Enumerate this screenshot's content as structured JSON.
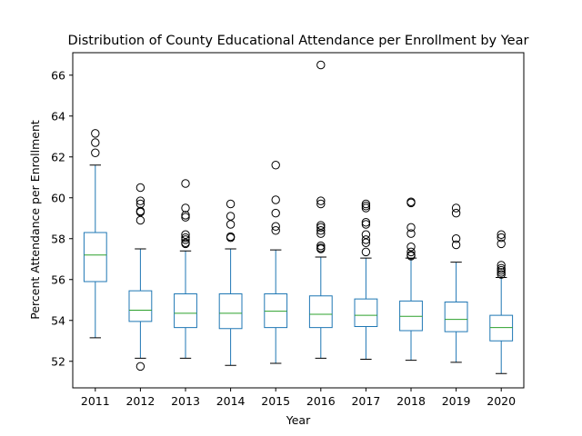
{
  "chart_data": {
    "type": "box",
    "title": "Distribution of County Educational Attendance per Enrollment by Year",
    "xlabel": "Year",
    "ylabel": "Percent Attendance per Enrollment",
    "ylim": [
      50.7,
      67.1
    ],
    "yticks": [
      52,
      54,
      56,
      58,
      60,
      62,
      64,
      66
    ],
    "grid": false,
    "colors": {
      "box": "#1f77b4",
      "median": "#2ca02c",
      "whisker_cap": "#000000",
      "outlier": "#000000"
    },
    "categories": [
      "2011",
      "2012",
      "2013",
      "2014",
      "2015",
      "2016",
      "2017",
      "2018",
      "2019",
      "2020"
    ],
    "boxes": [
      {
        "year": "2011",
        "whislo": 53.15,
        "q1": 55.9,
        "med": 57.2,
        "q3": 58.3,
        "whishi": 61.6,
        "fliers": [
          62.2,
          62.7,
          63.15
        ]
      },
      {
        "year": "2012",
        "whislo": 52.15,
        "q1": 53.95,
        "med": 54.5,
        "q3": 55.45,
        "whishi": 57.5,
        "fliers": [
          51.75,
          58.9,
          59.3,
          59.35,
          59.7,
          59.85,
          60.5
        ]
      },
      {
        "year": "2013",
        "whislo": 52.15,
        "q1": 53.65,
        "med": 54.35,
        "q3": 55.3,
        "whishi": 57.4,
        "fliers": [
          57.75,
          57.8,
          57.95,
          58.05,
          58.2,
          59.05,
          59.15,
          59.5,
          60.7
        ]
      },
      {
        "year": "2014",
        "whislo": 51.8,
        "q1": 53.6,
        "med": 54.35,
        "q3": 55.3,
        "whishi": 57.5,
        "fliers": [
          58.05,
          58.1,
          58.7,
          59.1,
          59.7
        ]
      },
      {
        "year": "2015",
        "whislo": 51.9,
        "q1": 53.65,
        "med": 54.45,
        "q3": 55.3,
        "whishi": 57.45,
        "fliers": [
          58.4,
          58.6,
          59.25,
          59.9,
          61.6
        ]
      },
      {
        "year": "2016",
        "whislo": 52.15,
        "q1": 53.65,
        "med": 54.3,
        "q3": 55.2,
        "whishi": 57.1,
        "fliers": [
          57.5,
          57.55,
          57.65,
          58.25,
          58.4,
          58.55,
          58.65,
          59.7,
          59.85,
          66.5
        ]
      },
      {
        "year": "2017",
        "whislo": 52.1,
        "q1": 53.7,
        "med": 54.25,
        "q3": 55.05,
        "whishi": 57.05,
        "fliers": [
          57.35,
          57.8,
          57.95,
          58.2,
          58.7,
          58.8,
          59.5,
          59.6,
          59.7
        ]
      },
      {
        "year": "2018",
        "whislo": 52.05,
        "q1": 53.5,
        "med": 54.2,
        "q3": 54.95,
        "whishi": 57.05,
        "fliers": [
          57.15,
          57.2,
          57.35,
          57.6,
          58.25,
          58.55,
          59.75,
          59.8
        ]
      },
      {
        "year": "2019",
        "whislo": 51.95,
        "q1": 53.45,
        "med": 54.05,
        "q3": 54.9,
        "whishi": 56.85,
        "fliers": [
          57.7,
          58.0,
          59.25,
          59.5
        ]
      },
      {
        "year": "2020",
        "whislo": 51.4,
        "q1": 53.0,
        "med": 53.65,
        "q3": 54.25,
        "whishi": 56.1,
        "fliers": [
          56.25,
          56.35,
          56.45,
          56.55,
          56.7,
          57.75,
          58.05,
          58.2
        ]
      }
    ]
  }
}
